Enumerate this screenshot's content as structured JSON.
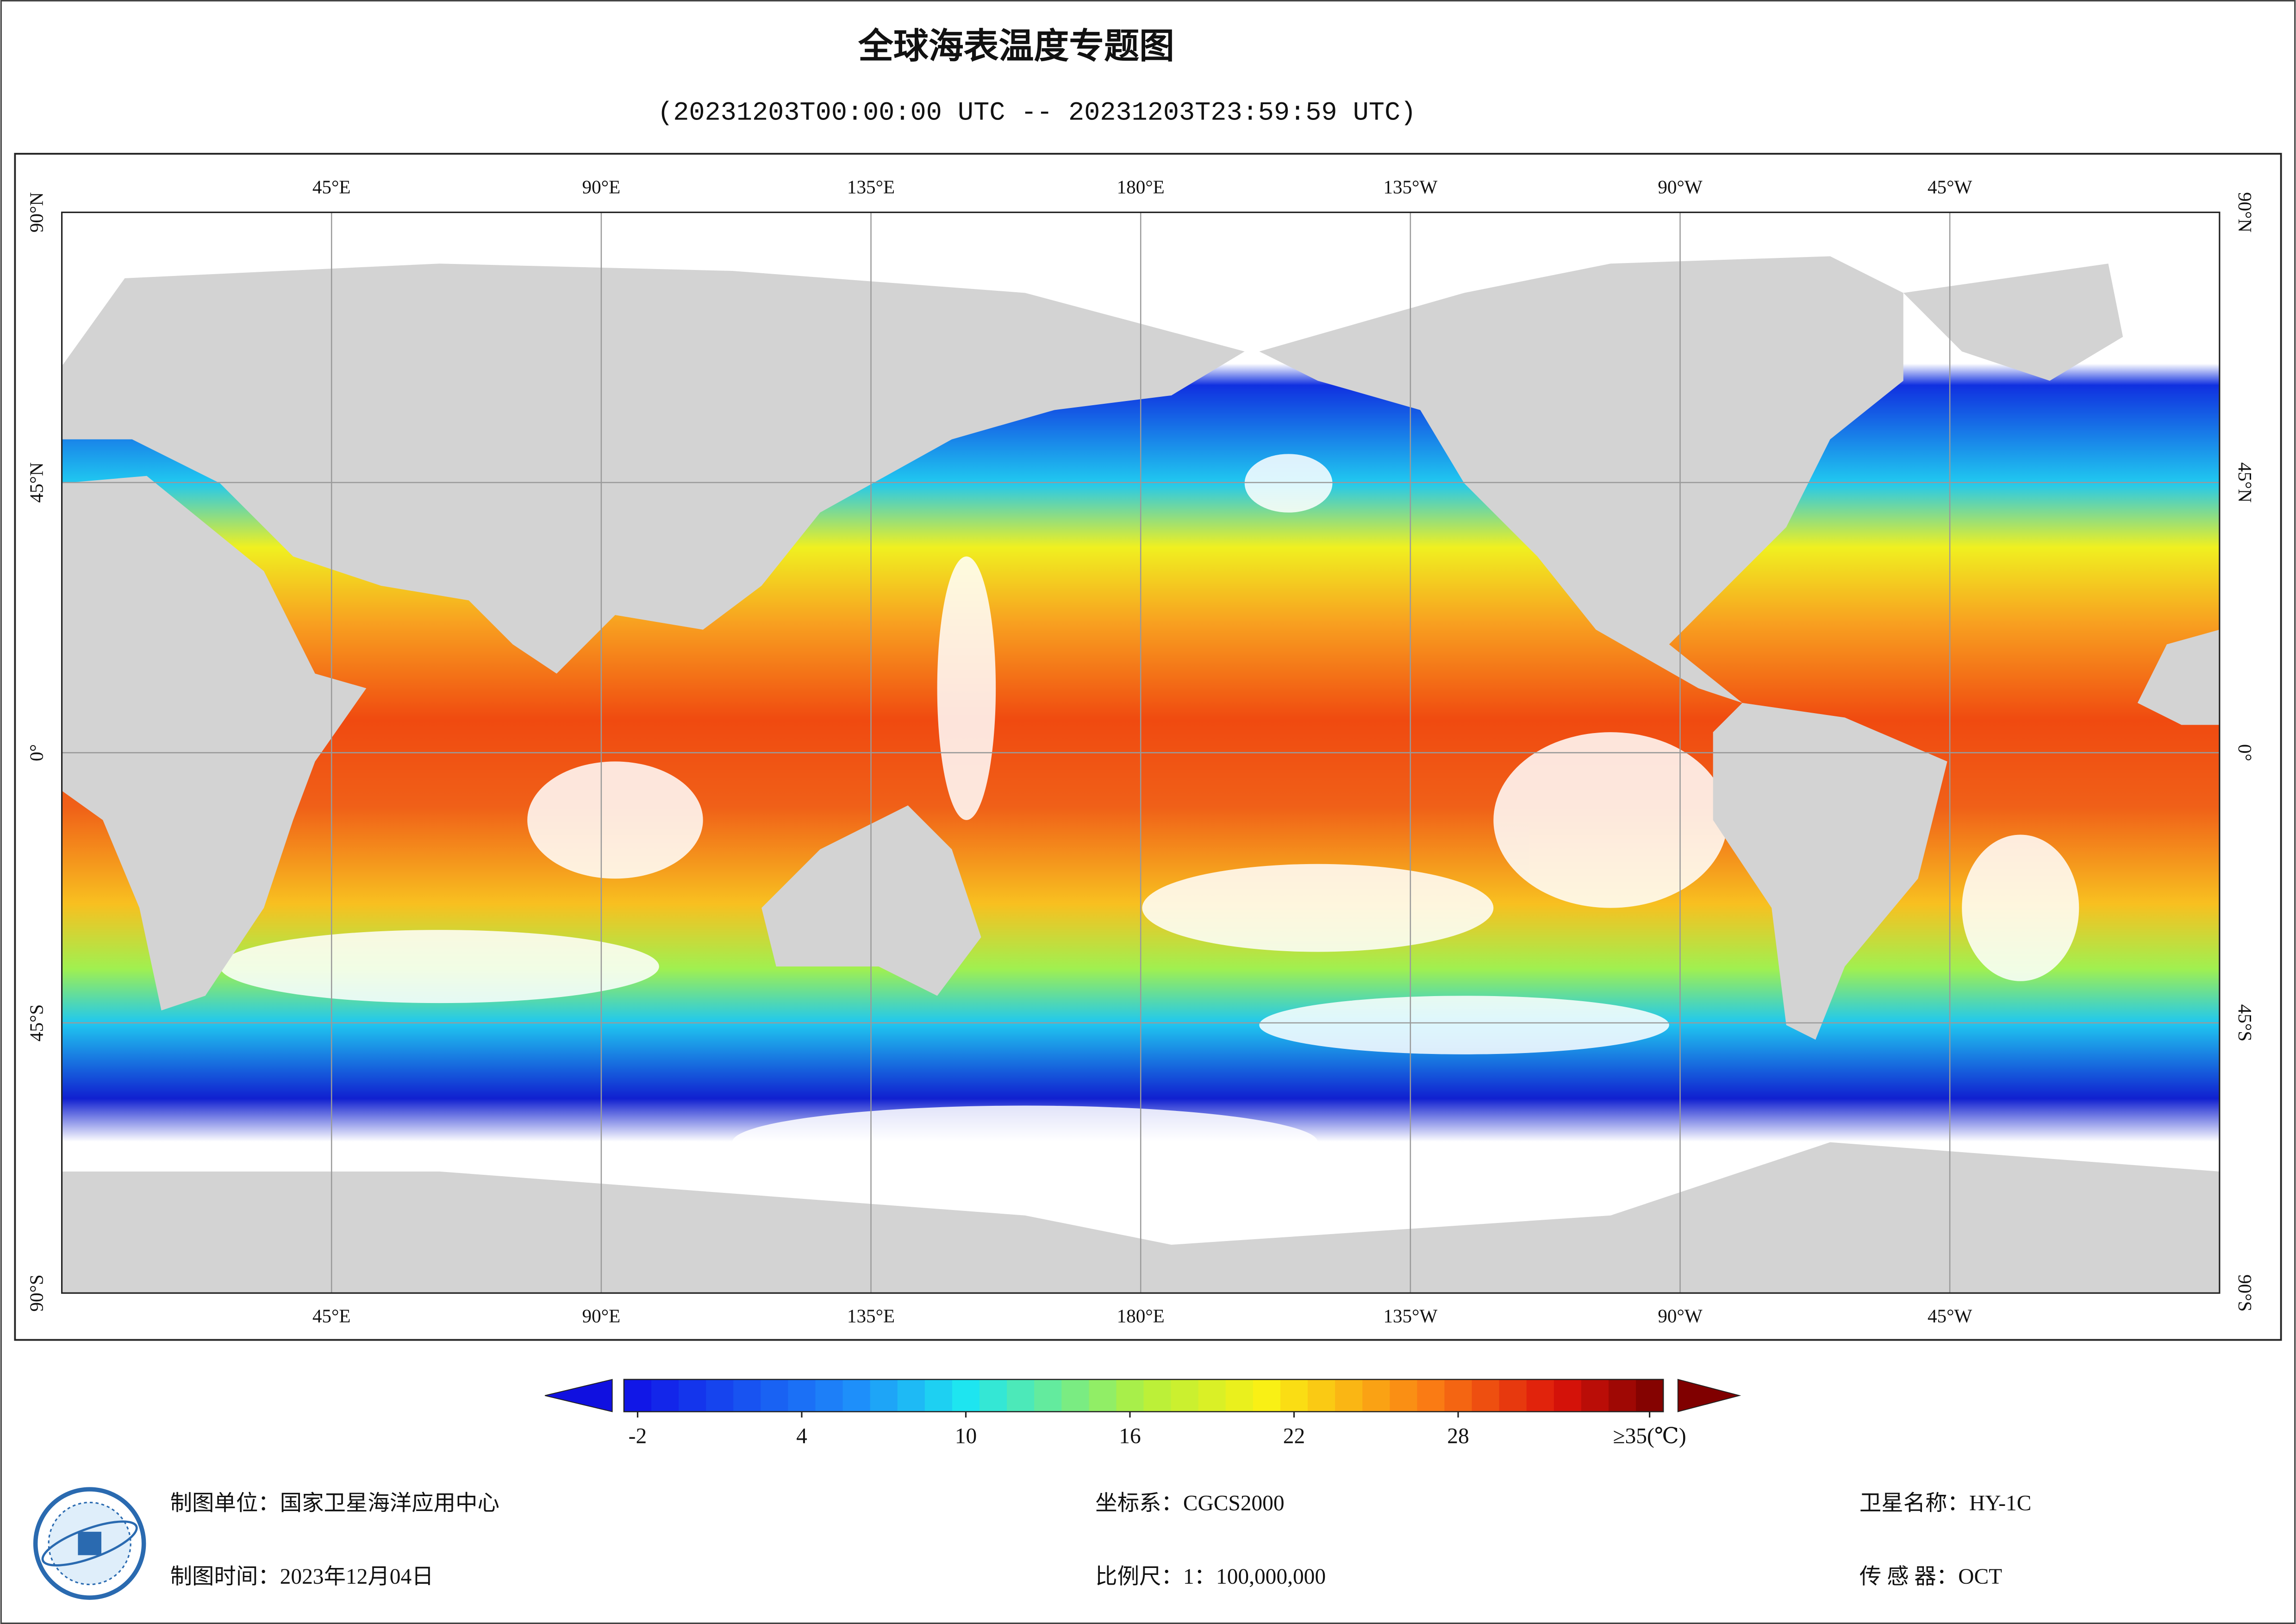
{
  "title": "全球海表温度专题图",
  "subtitle": "(20231203T00:00:00 UTC -- 20231203T23:59:59 UTC)",
  "map": {
    "lon_range": [
      0,
      360
    ],
    "lat_range": [
      -90,
      90
    ],
    "lon_ticks": [
      {
        "value": 45,
        "label": "45°E"
      },
      {
        "value": 90,
        "label": "90°E"
      },
      {
        "value": 135,
        "label": "135°E"
      },
      {
        "value": 180,
        "label": "180°E"
      },
      {
        "value": 225,
        "label": "135°W"
      },
      {
        "value": 270,
        "label": "90°W"
      },
      {
        "value": 315,
        "label": "45°W"
      }
    ],
    "lat_ticks": [
      {
        "value": 90,
        "label": "90°N"
      },
      {
        "value": 45,
        "label": "45°N"
      },
      {
        "value": 0,
        "label": "0°"
      },
      {
        "value": -45,
        "label": "45°S"
      },
      {
        "value": -90,
        "label": "90°S"
      }
    ]
  },
  "colorbar": {
    "lim": [
      -2.5,
      35.5
    ],
    "ticks": [
      -2,
      4,
      10,
      16,
      22,
      28,
      {
        "value": 35,
        "label": "≥35(℃)"
      }
    ]
  },
  "footer": {
    "unit": "制图单位：国家卫星海洋应用中心",
    "date": "制图时间：2023年12月04日",
    "crs": "坐标系：CGCS2000",
    "scale": "比例尺：1：100,000,000",
    "satellite": "卫星名称：HY-1C",
    "sensor": "传 感 器：OCT"
  }
}
